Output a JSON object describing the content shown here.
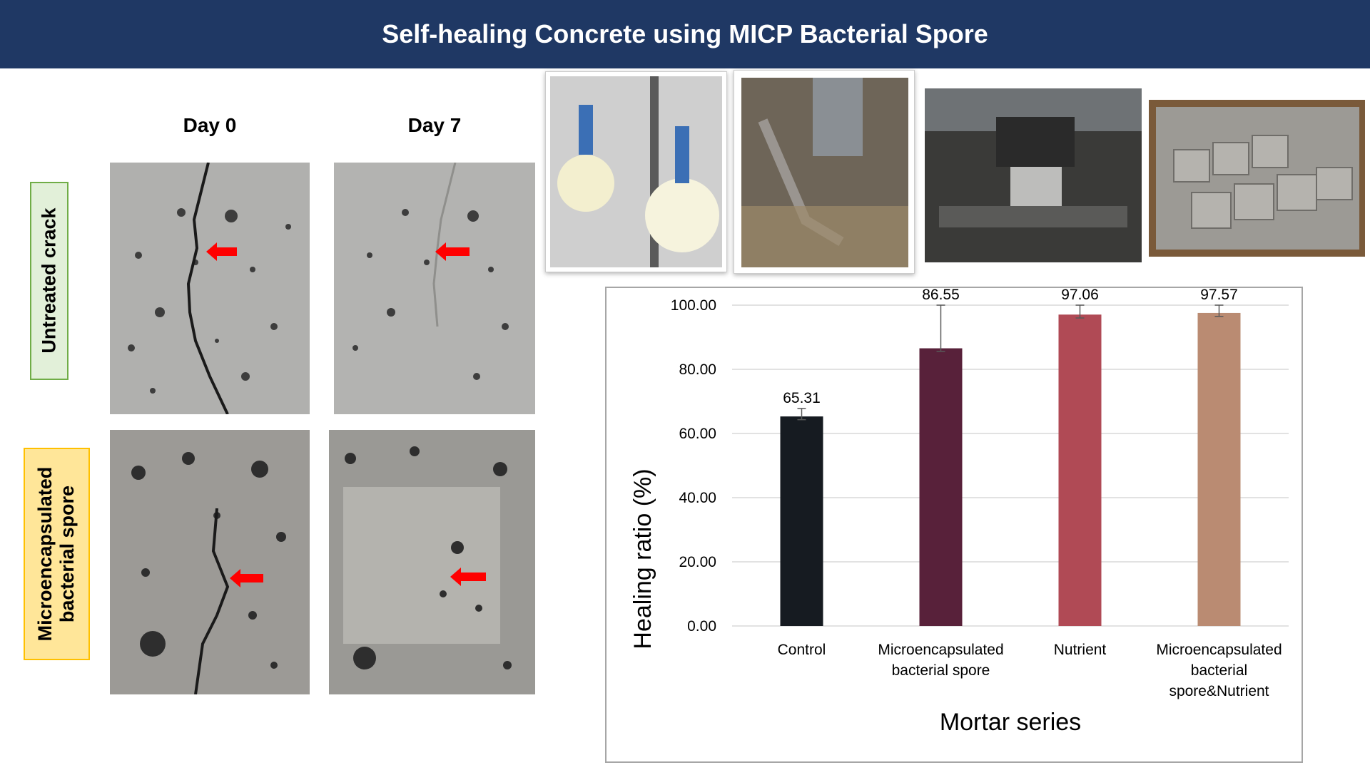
{
  "header": {
    "title": "Self-healing Concrete using MICP Bacterial Spore"
  },
  "columns": {
    "day0": "Day 0",
    "day7": "Day 7"
  },
  "rows": {
    "untreated": "Untreated crack",
    "micro_line1": "Microencapsulated",
    "micro_line2": "bacterial spore"
  },
  "colors": {
    "header_bg": "#1f3864",
    "untreated_box_bg": "#e2f0d9",
    "untreated_box_border": "#70ad47",
    "micro_box_bg": "#ffe699",
    "micro_box_border": "#ffc000",
    "arrow": "#ff0000"
  },
  "chart_data": {
    "type": "bar",
    "ylabel": "Healing ratio (%)",
    "xlabel": "Mortar series",
    "ylim": [
      0,
      100
    ],
    "yticks": [
      "0.00",
      "20.00",
      "40.00",
      "60.00",
      "80.00",
      "100.00"
    ],
    "grid": true,
    "categories": [
      [
        "Control"
      ],
      [
        "Microencapsulated",
        "bacterial spore"
      ],
      [
        "Nutrient"
      ],
      [
        "Microencapsulated",
        "bacterial",
        "spore&Nutrient"
      ]
    ],
    "values": [
      65.31,
      86.55,
      97.06,
      97.57
    ],
    "value_labels": [
      "65.31",
      "86.55",
      "97.06",
      "97.57"
    ],
    "error_low": [
      64.3,
      85.6,
      96.0,
      96.5
    ],
    "error_high": [
      67.8,
      100.0,
      100.0,
      100.0
    ],
    "bar_colors": [
      "#161b21",
      "#58213a",
      "#b04a55",
      "#ba8b72"
    ]
  }
}
